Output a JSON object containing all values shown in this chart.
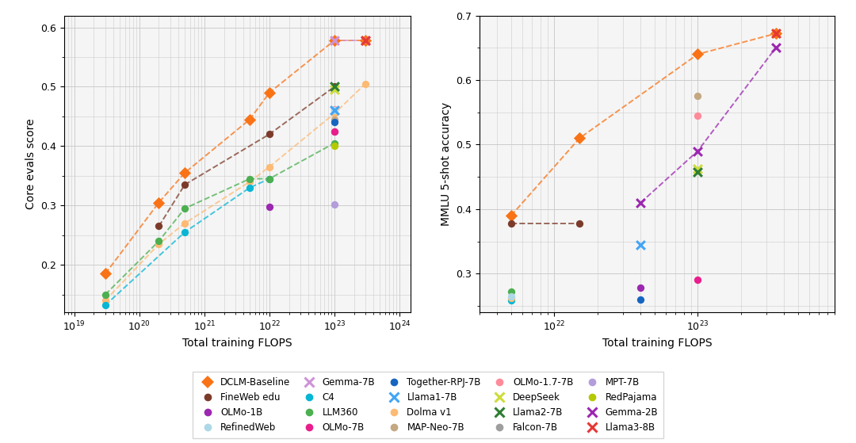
{
  "left_ylabel": "Core evals score",
  "right_ylabel": "MMLU 5-shot accuracy",
  "xlabel": "Total training FLOPS",
  "left_series": [
    {
      "name": "DCLM-Baseline",
      "color": "#F97316",
      "marker": "D",
      "linestyle": "--",
      "points": [
        [
          3e+19,
          0.185
        ],
        [
          2e+20,
          0.305
        ],
        [
          5e+20,
          0.355
        ],
        [
          5e+21,
          0.445
        ],
        [
          1e+22,
          0.49
        ],
        [
          1e+23,
          0.578
        ],
        [
          3e+23,
          0.578
        ]
      ]
    },
    {
      "name": "Dolma v1",
      "color": "#FDBA74",
      "marker": "o",
      "linestyle": "--",
      "points": [
        [
          3e+19,
          0.14
        ],
        [
          2e+20,
          0.235
        ],
        [
          5e+20,
          0.27
        ],
        [
          5e+21,
          0.34
        ],
        [
          1e+22,
          0.365
        ],
        [
          1e+23,
          0.455
        ],
        [
          3e+23,
          0.505
        ]
      ]
    },
    {
      "name": "FineWeb edu",
      "color": "#7C3B2A",
      "marker": "o",
      "linestyle": "--",
      "points": [
        [
          2e+20,
          0.265
        ],
        [
          5e+20,
          0.335
        ],
        [
          1e+22,
          0.42
        ],
        [
          1e+23,
          0.5
        ]
      ]
    },
    {
      "name": "C4",
      "color": "#06B6D4",
      "marker": "o",
      "linestyle": "--",
      "points": [
        [
          3e+19,
          0.132
        ],
        [
          5e+20,
          0.255
        ],
        [
          5e+21,
          0.33
        ],
        [
          1e+22,
          0.345
        ]
      ]
    },
    {
      "name": "LLM360",
      "color": "#4CAF50",
      "marker": "o",
      "linestyle": "--",
      "points": [
        [
          3e+19,
          0.15
        ],
        [
          2e+20,
          0.24
        ],
        [
          5e+20,
          0.295
        ],
        [
          5e+21,
          0.345
        ],
        [
          1e+22,
          0.345
        ],
        [
          1e+23,
          0.405
        ]
      ]
    },
    {
      "name": "Gemma-7B",
      "color": "#CE93D8",
      "marker": "x",
      "linestyle": "--",
      "points": [
        [
          1e+23,
          0.578
        ],
        [
          3e+23,
          0.578
        ]
      ]
    },
    {
      "name": "MAP-Neo-7B",
      "color": "#C4A882",
      "marker": "o",
      "linestyle": "none",
      "points": [
        [
          1e+23,
          0.445
        ]
      ]
    },
    {
      "name": "Falcon-7B",
      "color": "#9E9E9E",
      "marker": "o",
      "linestyle": "none",
      "points": [
        [
          1e+23,
          0.425
        ]
      ]
    },
    {
      "name": "MPT-7B",
      "color": "#B39DDB",
      "marker": "o",
      "linestyle": "none",
      "points": [
        [
          1e+23,
          0.302
        ]
      ]
    },
    {
      "name": "OLMo-1B",
      "color": "#9C27B0",
      "marker": "o",
      "linestyle": "none",
      "points": [
        [
          1e+22,
          0.298
        ]
      ]
    },
    {
      "name": "OLMo-7B",
      "color": "#E91E8C",
      "marker": "o",
      "linestyle": "none",
      "points": [
        [
          1e+23,
          0.425
        ]
      ]
    },
    {
      "name": "OLMo-1.7-7B",
      "color": "#FF8A9A",
      "marker": "o",
      "linestyle": "none",
      "points": [
        [
          1e+23,
          0.462
        ]
      ]
    },
    {
      "name": "RedPajama",
      "color": "#B5C900",
      "marker": "o",
      "linestyle": "none",
      "points": [
        [
          1e+23,
          0.4
        ]
      ]
    },
    {
      "name": "RefinedWeb",
      "color": "#ADD8E6",
      "marker": "o",
      "linestyle": "none",
      "points": [
        [
          1e+23,
          0.46
        ]
      ]
    },
    {
      "name": "Together-RPJ-7B",
      "color": "#1565C0",
      "marker": "o",
      "linestyle": "none",
      "points": [
        [
          1e+23,
          0.44
        ]
      ]
    },
    {
      "name": "DeepSeek",
      "color": "#CDDC39",
      "marker": "x",
      "linestyle": "none",
      "points": [
        [
          1e+23,
          0.495
        ]
      ]
    },
    {
      "name": "Llama1-7B",
      "color": "#42A5F5",
      "marker": "x",
      "linestyle": "none",
      "points": [
        [
          1e+23,
          0.46
        ]
      ]
    },
    {
      "name": "Llama2-7B",
      "color": "#2E7D32",
      "marker": "x",
      "linestyle": "none",
      "points": [
        [
          1e+23,
          0.5
        ]
      ]
    },
    {
      "name": "Llama3-8B",
      "color": "#E53935",
      "marker": "x",
      "linestyle": "none",
      "points": [
        [
          3e+23,
          0.578
        ]
      ]
    }
  ],
  "right_series": [
    {
      "name": "DCLM-Baseline",
      "color": "#F97316",
      "marker": "D",
      "linestyle": "--",
      "points": [
        [
          5e+21,
          0.39
        ],
        [
          1.5e+22,
          0.51
        ],
        [
          1e+23,
          0.64
        ],
        [
          3.5e+23,
          0.672
        ]
      ]
    },
    {
      "name": "FineWeb edu",
      "color": "#7C3B2A",
      "marker": "o",
      "linestyle": "--",
      "points": [
        [
          5e+21,
          0.378
        ],
        [
          1.5e+22,
          0.378
        ]
      ]
    },
    {
      "name": "Gemma-2B",
      "color": "#9C27B0",
      "marker": "x",
      "linestyle": "--",
      "points": [
        [
          4e+22,
          0.41
        ],
        [
          1e+23,
          0.49
        ],
        [
          3.5e+23,
          0.65
        ]
      ]
    },
    {
      "name": "C4",
      "color": "#06B6D4",
      "marker": "o",
      "linestyle": "none",
      "points": [
        [
          5e+21,
          0.258
        ]
      ]
    },
    {
      "name": "Dolma v1",
      "color": "#FDBA74",
      "marker": "o",
      "linestyle": "none",
      "points": [
        [
          5e+21,
          0.262
        ]
      ]
    },
    {
      "name": "LLM360",
      "color": "#4CAF50",
      "marker": "o",
      "linestyle": "none",
      "points": [
        [
          5e+21,
          0.272
        ]
      ]
    },
    {
      "name": "RefinedWeb",
      "color": "#ADD8E6",
      "marker": "o",
      "linestyle": "none",
      "points": [
        [
          5e+21,
          0.265
        ]
      ]
    },
    {
      "name": "OLMo-1B",
      "color": "#9C27B0",
      "marker": "o",
      "linestyle": "none",
      "points": [
        [
          4e+22,
          0.278
        ]
      ]
    },
    {
      "name": "OLMo-7B",
      "color": "#E91E8C",
      "marker": "o",
      "linestyle": "none",
      "points": [
        [
          1e+23,
          0.29
        ]
      ]
    },
    {
      "name": "OLMo-1.7-7B",
      "color": "#FF8A9A",
      "marker": "o",
      "linestyle": "none",
      "points": [
        [
          1e+23,
          0.545
        ]
      ]
    },
    {
      "name": "Together-RPJ-7B",
      "color": "#1565C0",
      "marker": "o",
      "linestyle": "none",
      "points": [
        [
          4e+22,
          0.26
        ]
      ]
    },
    {
      "name": "MAP-Neo-7B",
      "color": "#C4A882",
      "marker": "o",
      "linestyle": "none",
      "points": [
        [
          1e+23,
          0.576
        ]
      ]
    },
    {
      "name": "DeepSeek",
      "color": "#CDDC39",
      "marker": "x",
      "linestyle": "none",
      "points": [
        [
          1e+23,
          0.462
        ]
      ]
    },
    {
      "name": "Llama1-7B",
      "color": "#42A5F5",
      "marker": "x",
      "linestyle": "none",
      "points": [
        [
          4e+22,
          0.345
        ]
      ]
    },
    {
      "name": "Llama2-7B",
      "color": "#2E7D32",
      "marker": "x",
      "linestyle": "none",
      "points": [
        [
          1e+23,
          0.457
        ]
      ]
    },
    {
      "name": "Llama3-8B",
      "color": "#E53935",
      "marker": "x",
      "linestyle": "none",
      "points": [
        [
          3.5e+23,
          0.672
        ]
      ]
    }
  ],
  "legend_entries": [
    {
      "name": "DCLM-Baseline",
      "color": "#F97316",
      "marker": "D"
    },
    {
      "name": "FineWeb edu",
      "color": "#7C3B2A",
      "marker": "o"
    },
    {
      "name": "OLMo-1B",
      "color": "#9C27B0",
      "marker": "o"
    },
    {
      "name": "RefinedWeb",
      "color": "#ADD8E6",
      "marker": "o"
    },
    {
      "name": "Gemma-7B",
      "color": "#CE93D8",
      "marker": "x"
    },
    {
      "name": "C4",
      "color": "#06B6D4",
      "marker": "o"
    },
    {
      "name": "LLM360",
      "color": "#4CAF50",
      "marker": "o"
    },
    {
      "name": "OLMo-7B",
      "color": "#E91E8C",
      "marker": "o"
    },
    {
      "name": "Together-RPJ-7B",
      "color": "#1565C0",
      "marker": "o"
    },
    {
      "name": "Llama1-7B",
      "color": "#42A5F5",
      "marker": "x"
    },
    {
      "name": "Dolma v1",
      "color": "#FDBA74",
      "marker": "o"
    },
    {
      "name": "MAP-Neo-7B",
      "color": "#C4A882",
      "marker": "o"
    },
    {
      "name": "OLMo-1.7-7B",
      "color": "#FF8A9A",
      "marker": "o"
    },
    {
      "name": "DeepSeek",
      "color": "#CDDC39",
      "marker": "x"
    },
    {
      "name": "Llama2-7B",
      "color": "#2E7D32",
      "marker": "x"
    },
    {
      "name": "Falcon-7B",
      "color": "#9E9E9E",
      "marker": "o"
    },
    {
      "name": "MPT-7B",
      "color": "#B39DDB",
      "marker": "o"
    },
    {
      "name": "RedPajama",
      "color": "#B5C900",
      "marker": "o"
    },
    {
      "name": "Gemma-2B",
      "color": "#9C27B0",
      "marker": "x"
    },
    {
      "name": "Llama3-8B",
      "color": "#E53935",
      "marker": "x"
    }
  ],
  "left_xlim": [
    7e+18,
    1.5e+24
  ],
  "left_ylim": [
    0.12,
    0.62
  ],
  "right_xlim": [
    3e+21,
    9e+23
  ],
  "right_ylim": [
    0.24,
    0.7
  ],
  "bg_color": "#F5F5F5",
  "grid_color": "#CCCCCC"
}
